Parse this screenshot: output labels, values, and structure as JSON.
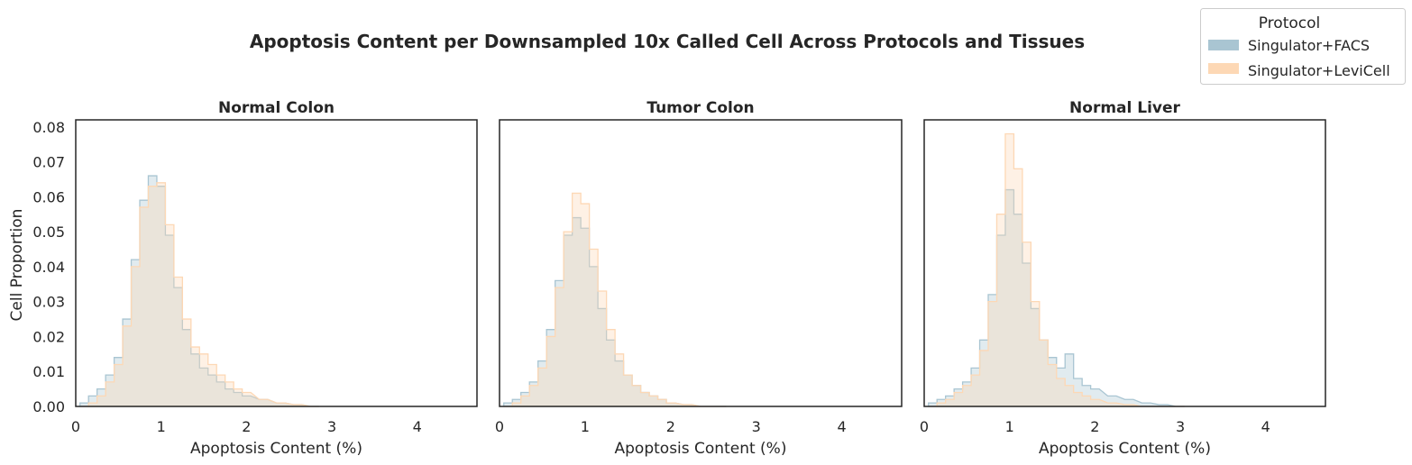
{
  "figure": {
    "title": "Apoptosis Content per Downsampled 10x Called Cell Across Protocols and Tissues"
  },
  "legend": {
    "title": "Protocol",
    "placement": "top-right",
    "items": [
      {
        "label": "Singulator+FACS",
        "color": "#a9c5d2"
      },
      {
        "label": "Singulator+LeviCell",
        "color": "#fdd8b5"
      }
    ]
  },
  "chart_data": [
    {
      "type": "area",
      "title": "Normal Colon",
      "xlabel": "Apoptosis Content (%)",
      "ylabel": "Cell Proportion",
      "xlim": [
        0,
        4.7
      ],
      "ylim": [
        0,
        0.082
      ],
      "xticks": [
        "0",
        "1",
        "2",
        "3",
        "4"
      ],
      "yticks": [
        "0.00",
        "0.01",
        "0.02",
        "0.03",
        "0.04",
        "0.05",
        "0.06",
        "0.07",
        "0.08"
      ],
      "grid": false,
      "series": [
        {
          "name": "Singulator+FACS",
          "color": "#a9c5d2",
          "x": [
            0.1,
            0.2,
            0.3,
            0.4,
            0.5,
            0.6,
            0.7,
            0.8,
            0.9,
            1.0,
            1.1,
            1.2,
            1.3,
            1.4,
            1.5,
            1.6,
            1.7,
            1.8,
            1.9,
            2.0,
            2.2,
            2.4,
            2.6,
            2.8
          ],
          "y": [
            0.001,
            0.003,
            0.005,
            0.009,
            0.014,
            0.025,
            0.042,
            0.059,
            0.066,
            0.063,
            0.049,
            0.034,
            0.022,
            0.015,
            0.011,
            0.009,
            0.007,
            0.005,
            0.004,
            0.003,
            0.002,
            0.001,
            0.0005,
            0.0
          ]
        },
        {
          "name": "Singulator+LeviCell",
          "color": "#fdd8b5",
          "x": [
            0.1,
            0.2,
            0.3,
            0.4,
            0.5,
            0.6,
            0.7,
            0.8,
            0.9,
            1.0,
            1.1,
            1.2,
            1.3,
            1.4,
            1.5,
            1.6,
            1.7,
            1.8,
            1.9,
            2.0,
            2.2,
            2.4,
            2.6,
            2.8
          ],
          "y": [
            0.0,
            0.001,
            0.003,
            0.007,
            0.012,
            0.023,
            0.04,
            0.057,
            0.063,
            0.064,
            0.052,
            0.037,
            0.025,
            0.017,
            0.015,
            0.012,
            0.009,
            0.007,
            0.005,
            0.004,
            0.002,
            0.001,
            0.0005,
            0.0
          ]
        }
      ]
    },
    {
      "type": "area",
      "title": "Tumor Colon",
      "xlabel": "Apoptosis Content (%)",
      "ylabel": "",
      "xlim": [
        0,
        4.7
      ],
      "ylim": [
        0,
        0.082
      ],
      "xticks": [
        "0",
        "1",
        "2",
        "3",
        "4"
      ],
      "yticks": [],
      "grid": false,
      "series": [
        {
          "name": "Singulator+FACS",
          "color": "#a9c5d2",
          "x": [
            0.1,
            0.2,
            0.3,
            0.4,
            0.5,
            0.6,
            0.7,
            0.8,
            0.9,
            1.0,
            1.1,
            1.2,
            1.3,
            1.4,
            1.5,
            1.6,
            1.7,
            1.8,
            1.9,
            2.0,
            2.2,
            2.4,
            2.6
          ],
          "y": [
            0.001,
            0.002,
            0.004,
            0.007,
            0.013,
            0.022,
            0.036,
            0.049,
            0.054,
            0.051,
            0.04,
            0.028,
            0.019,
            0.013,
            0.009,
            0.006,
            0.004,
            0.003,
            0.002,
            0.001,
            0.0005,
            0.0,
            0.0
          ]
        },
        {
          "name": "Singulator+LeviCell",
          "color": "#fdd8b5",
          "x": [
            0.1,
            0.2,
            0.3,
            0.4,
            0.5,
            0.6,
            0.7,
            0.8,
            0.9,
            1.0,
            1.1,
            1.2,
            1.3,
            1.4,
            1.5,
            1.6,
            1.7,
            1.8,
            1.9,
            2.0,
            2.2,
            2.4,
            2.6
          ],
          "y": [
            0.0,
            0.001,
            0.003,
            0.006,
            0.011,
            0.02,
            0.034,
            0.05,
            0.061,
            0.058,
            0.045,
            0.033,
            0.022,
            0.015,
            0.009,
            0.006,
            0.004,
            0.003,
            0.002,
            0.001,
            0.0005,
            0.0,
            0.0
          ]
        }
      ]
    },
    {
      "type": "area",
      "title": "Normal Liver",
      "xlabel": "Apoptosis Content (%)",
      "ylabel": "",
      "xlim": [
        0,
        4.7
      ],
      "ylim": [
        0,
        0.082
      ],
      "xticks": [
        "0",
        "1",
        "2",
        "3",
        "4"
      ],
      "yticks": [],
      "grid": false,
      "series": [
        {
          "name": "Singulator+FACS",
          "color": "#a9c5d2",
          "x": [
            0.1,
            0.2,
            0.3,
            0.4,
            0.5,
            0.6,
            0.7,
            0.8,
            0.9,
            1.0,
            1.1,
            1.2,
            1.3,
            1.4,
            1.5,
            1.6,
            1.7,
            1.8,
            1.9,
            2.0,
            2.2,
            2.4,
            2.6,
            2.8,
            3.0
          ],
          "y": [
            0.001,
            0.002,
            0.003,
            0.005,
            0.007,
            0.011,
            0.019,
            0.032,
            0.049,
            0.062,
            0.055,
            0.041,
            0.028,
            0.019,
            0.014,
            0.011,
            0.015,
            0.008,
            0.006,
            0.005,
            0.003,
            0.002,
            0.001,
            0.0005,
            0.0
          ]
        },
        {
          "name": "Singulator+LeviCell",
          "color": "#fdd8b5",
          "x": [
            0.1,
            0.2,
            0.3,
            0.4,
            0.5,
            0.6,
            0.7,
            0.8,
            0.9,
            1.0,
            1.1,
            1.2,
            1.3,
            1.4,
            1.5,
            1.6,
            1.7,
            1.8,
            1.9,
            2.0,
            2.2,
            2.4,
            2.6,
            2.8,
            3.0
          ],
          "y": [
            0.0,
            0.001,
            0.002,
            0.004,
            0.006,
            0.009,
            0.016,
            0.03,
            0.055,
            0.078,
            0.068,
            0.047,
            0.03,
            0.019,
            0.012,
            0.008,
            0.006,
            0.004,
            0.003,
            0.002,
            0.001,
            0.0005,
            0.0,
            0.0,
            0.0
          ]
        }
      ]
    }
  ]
}
